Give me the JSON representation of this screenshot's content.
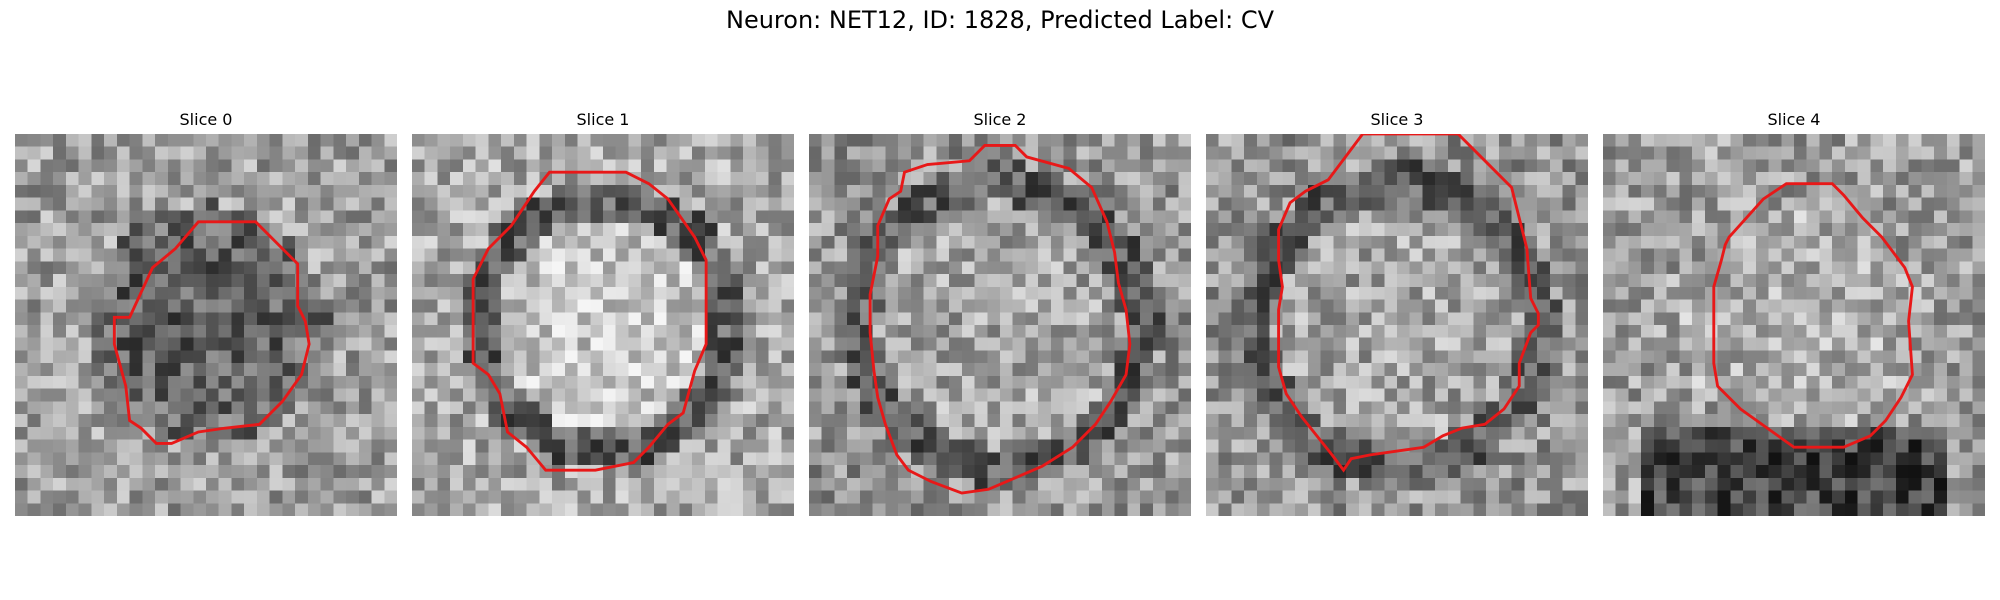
{
  "figure": {
    "title": "Neuron: NET12, ID: 1828, Predicted Label: CV"
  },
  "panels": [
    {
      "title": "Slice 0",
      "contour": [
        [
          0.3,
          0.48
        ],
        [
          0.36,
          0.35
        ],
        [
          0.42,
          0.3
        ],
        [
          0.48,
          0.23
        ],
        [
          0.63,
          0.23
        ],
        [
          0.7,
          0.3
        ],
        [
          0.74,
          0.34
        ],
        [
          0.74,
          0.45
        ],
        [
          0.76,
          0.49
        ],
        [
          0.77,
          0.55
        ],
        [
          0.75,
          0.63
        ],
        [
          0.7,
          0.7
        ],
        [
          0.64,
          0.76
        ],
        [
          0.55,
          0.77
        ],
        [
          0.48,
          0.78
        ],
        [
          0.41,
          0.81
        ],
        [
          0.37,
          0.81
        ],
        [
          0.33,
          0.77
        ],
        [
          0.3,
          0.75
        ],
        [
          0.29,
          0.66
        ],
        [
          0.26,
          0.55
        ],
        [
          0.26,
          0.48
        ]
      ]
    },
    {
      "title": "Slice 1",
      "contour": [
        [
          0.2,
          0.3
        ],
        [
          0.26,
          0.24
        ],
        [
          0.32,
          0.15
        ],
        [
          0.36,
          0.1
        ],
        [
          0.56,
          0.1
        ],
        [
          0.62,
          0.13
        ],
        [
          0.67,
          0.17
        ],
        [
          0.74,
          0.27
        ],
        [
          0.77,
          0.33
        ],
        [
          0.77,
          0.55
        ],
        [
          0.74,
          0.62
        ],
        [
          0.71,
          0.73
        ],
        [
          0.67,
          0.76
        ],
        [
          0.62,
          0.82
        ],
        [
          0.58,
          0.86
        ],
        [
          0.48,
          0.88
        ],
        [
          0.35,
          0.88
        ],
        [
          0.3,
          0.82
        ],
        [
          0.25,
          0.78
        ],
        [
          0.23,
          0.68
        ],
        [
          0.2,
          0.63
        ],
        [
          0.16,
          0.6
        ],
        [
          0.16,
          0.38
        ]
      ]
    },
    {
      "title": "Slice 2",
      "contour": [
        [
          0.21,
          0.17
        ],
        [
          0.24,
          0.15
        ],
        [
          0.25,
          0.1
        ],
        [
          0.31,
          0.08
        ],
        [
          0.42,
          0.07
        ],
        [
          0.46,
          0.03
        ],
        [
          0.54,
          0.03
        ],
        [
          0.57,
          0.06
        ],
        [
          0.68,
          0.09
        ],
        [
          0.74,
          0.14
        ],
        [
          0.78,
          0.23
        ],
        [
          0.8,
          0.31
        ],
        [
          0.81,
          0.39
        ],
        [
          0.83,
          0.46
        ],
        [
          0.84,
          0.55
        ],
        [
          0.83,
          0.63
        ],
        [
          0.79,
          0.7
        ],
        [
          0.75,
          0.76
        ],
        [
          0.69,
          0.82
        ],
        [
          0.61,
          0.87
        ],
        [
          0.54,
          0.9
        ],
        [
          0.47,
          0.93
        ],
        [
          0.4,
          0.94
        ],
        [
          0.32,
          0.91
        ],
        [
          0.26,
          0.88
        ],
        [
          0.23,
          0.84
        ],
        [
          0.2,
          0.76
        ],
        [
          0.18,
          0.69
        ],
        [
          0.17,
          0.62
        ],
        [
          0.16,
          0.52
        ],
        [
          0.16,
          0.42
        ],
        [
          0.17,
          0.37
        ],
        [
          0.18,
          0.32
        ],
        [
          0.18,
          0.24
        ]
      ]
    },
    {
      "title": "Slice 3",
      "contour": [
        [
          0.26,
          0.15
        ],
        [
          0.32,
          0.12
        ],
        [
          0.41,
          0.0
        ],
        [
          0.66,
          0.0
        ],
        [
          0.74,
          0.08
        ],
        [
          0.8,
          0.14
        ],
        [
          0.82,
          0.22
        ],
        [
          0.84,
          0.3
        ],
        [
          0.85,
          0.43
        ],
        [
          0.87,
          0.47
        ],
        [
          0.87,
          0.5
        ],
        [
          0.85,
          0.52
        ],
        [
          0.82,
          0.6
        ],
        [
          0.82,
          0.66
        ],
        [
          0.78,
          0.72
        ],
        [
          0.73,
          0.76
        ],
        [
          0.67,
          0.77
        ],
        [
          0.62,
          0.79
        ],
        [
          0.57,
          0.82
        ],
        [
          0.5,
          0.83
        ],
        [
          0.43,
          0.84
        ],
        [
          0.38,
          0.85
        ],
        [
          0.36,
          0.88
        ],
        [
          0.33,
          0.84
        ],
        [
          0.25,
          0.74
        ],
        [
          0.21,
          0.68
        ],
        [
          0.19,
          0.61
        ],
        [
          0.19,
          0.46
        ],
        [
          0.2,
          0.4
        ],
        [
          0.19,
          0.33
        ],
        [
          0.19,
          0.25
        ],
        [
          0.22,
          0.18
        ]
      ]
    },
    {
      "title": "Slice 4",
      "contour": [
        [
          0.33,
          0.27
        ],
        [
          0.42,
          0.17
        ],
        [
          0.48,
          0.13
        ],
        [
          0.6,
          0.13
        ],
        [
          0.63,
          0.16
        ],
        [
          0.68,
          0.22
        ],
        [
          0.73,
          0.27
        ],
        [
          0.79,
          0.35
        ],
        [
          0.81,
          0.4
        ],
        [
          0.8,
          0.49
        ],
        [
          0.81,
          0.63
        ],
        [
          0.78,
          0.69
        ],
        [
          0.74,
          0.75
        ],
        [
          0.7,
          0.79
        ],
        [
          0.63,
          0.82
        ],
        [
          0.57,
          0.82
        ],
        [
          0.5,
          0.82
        ],
        [
          0.43,
          0.77
        ],
        [
          0.36,
          0.72
        ],
        [
          0.3,
          0.66
        ],
        [
          0.29,
          0.6
        ],
        [
          0.29,
          0.4
        ],
        [
          0.31,
          0.33
        ],
        [
          0.32,
          0.29
        ]
      ]
    }
  ],
  "colors": {
    "contour": "#e81818"
  }
}
